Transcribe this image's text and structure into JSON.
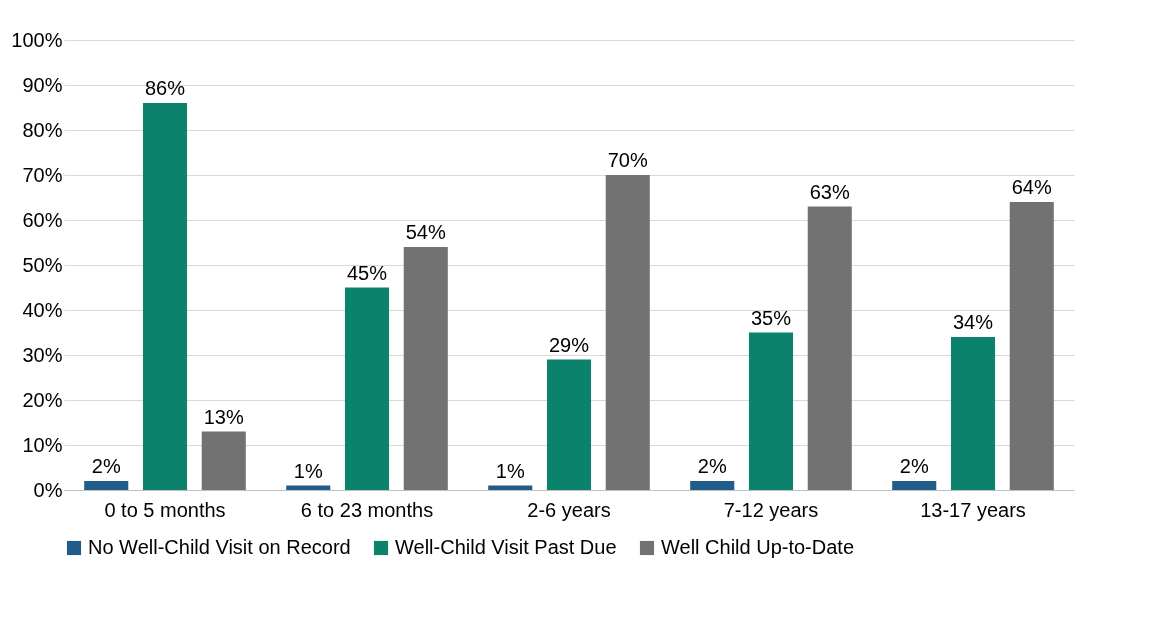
{
  "chart_data": {
    "type": "bar",
    "categories": [
      "0 to 5 months",
      "6 to 23 months",
      "2-6 years",
      "7-12 years",
      "13-17 years"
    ],
    "series": [
      {
        "name": "No Well-Child Visit on Record",
        "color": "#1f5c87",
        "values": [
          2,
          1,
          1,
          2,
          2
        ],
        "value_labels": [
          "2%",
          "1%",
          "1%",
          "2%",
          "2%"
        ]
      },
      {
        "name": "Well-Child Visit Past Due",
        "color": "#0b826c",
        "values": [
          86,
          45,
          29,
          35,
          34
        ],
        "value_labels": [
          "86%",
          "45%",
          "29%",
          "35%",
          "34%"
        ]
      },
      {
        "name": "Well Child Up-to-Date",
        "color": "#727273",
        "values": [
          13,
          54,
          70,
          63,
          64
        ],
        "value_labels": [
          "13%",
          "54%",
          "70%",
          "63%",
          "64%"
        ]
      }
    ],
    "ylim": [
      0,
      100
    ],
    "yticks": [
      {
        "value": 0,
        "label": "0%"
      },
      {
        "value": 10,
        "label": "10%"
      },
      {
        "value": 20,
        "label": "20%"
      },
      {
        "value": 30,
        "label": "30%"
      },
      {
        "value": 40,
        "label": "40%"
      },
      {
        "value": 50,
        "label": "50%"
      },
      {
        "value": 60,
        "label": "60%"
      },
      {
        "value": 70,
        "label": "70%"
      },
      {
        "value": 80,
        "label": "80%"
      },
      {
        "value": 90,
        "label": "90%"
      },
      {
        "value": 100,
        "label": "100%"
      }
    ],
    "grid": "y",
    "legend": "bottom"
  }
}
